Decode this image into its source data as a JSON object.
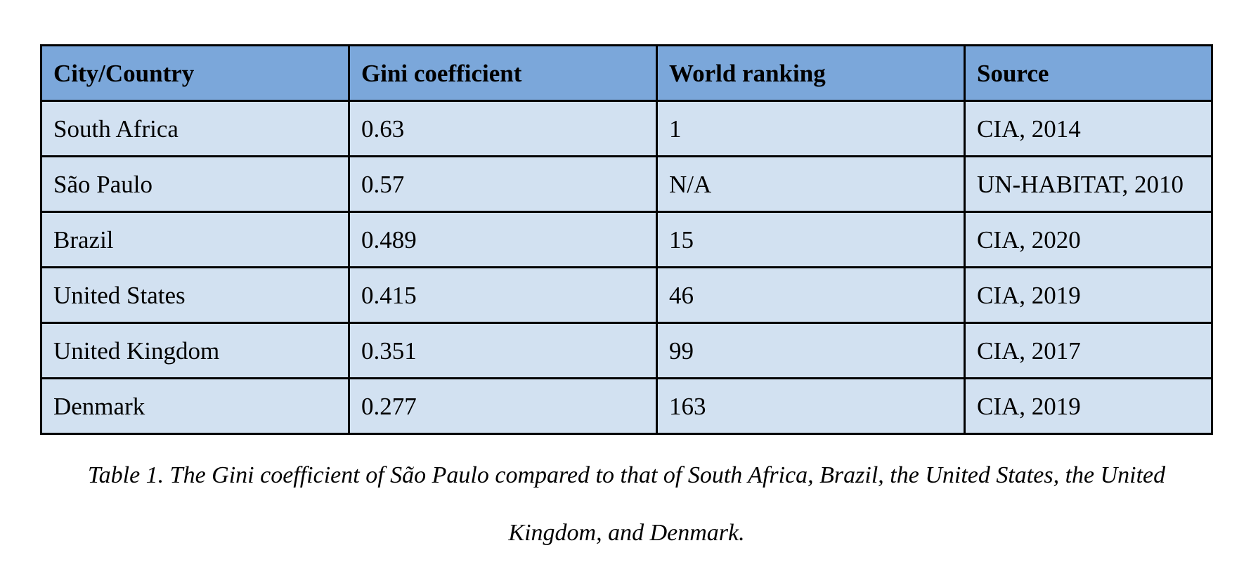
{
  "colors": {
    "header_bg": "#7ba7da",
    "row_bg": "#d2e1f1",
    "border": "#000000"
  },
  "table": {
    "headers": [
      "City/Country",
      "Gini coefficient",
      "World ranking",
      "Source"
    ],
    "rows": [
      [
        "South Africa",
        "0.63",
        "1",
        "CIA, 2014"
      ],
      [
        "São Paulo",
        "0.57",
        "N/A",
        "UN-HABITAT, 2010"
      ],
      [
        "Brazil",
        "0.489",
        "15",
        "CIA, 2020"
      ],
      [
        "United States",
        "0.415",
        "46",
        "CIA, 2019"
      ],
      [
        "United Kingdom",
        "0.351",
        "99",
        "CIA, 2017"
      ],
      [
        "Denmark",
        "0.277",
        "163",
        "CIA, 2019"
      ]
    ]
  },
  "caption": {
    "line1": "Table 1. The Gini coefficient of São Paulo compared to that of South Africa, Brazil, the United States, the United",
    "line2": "Kingdom, and Denmark."
  }
}
